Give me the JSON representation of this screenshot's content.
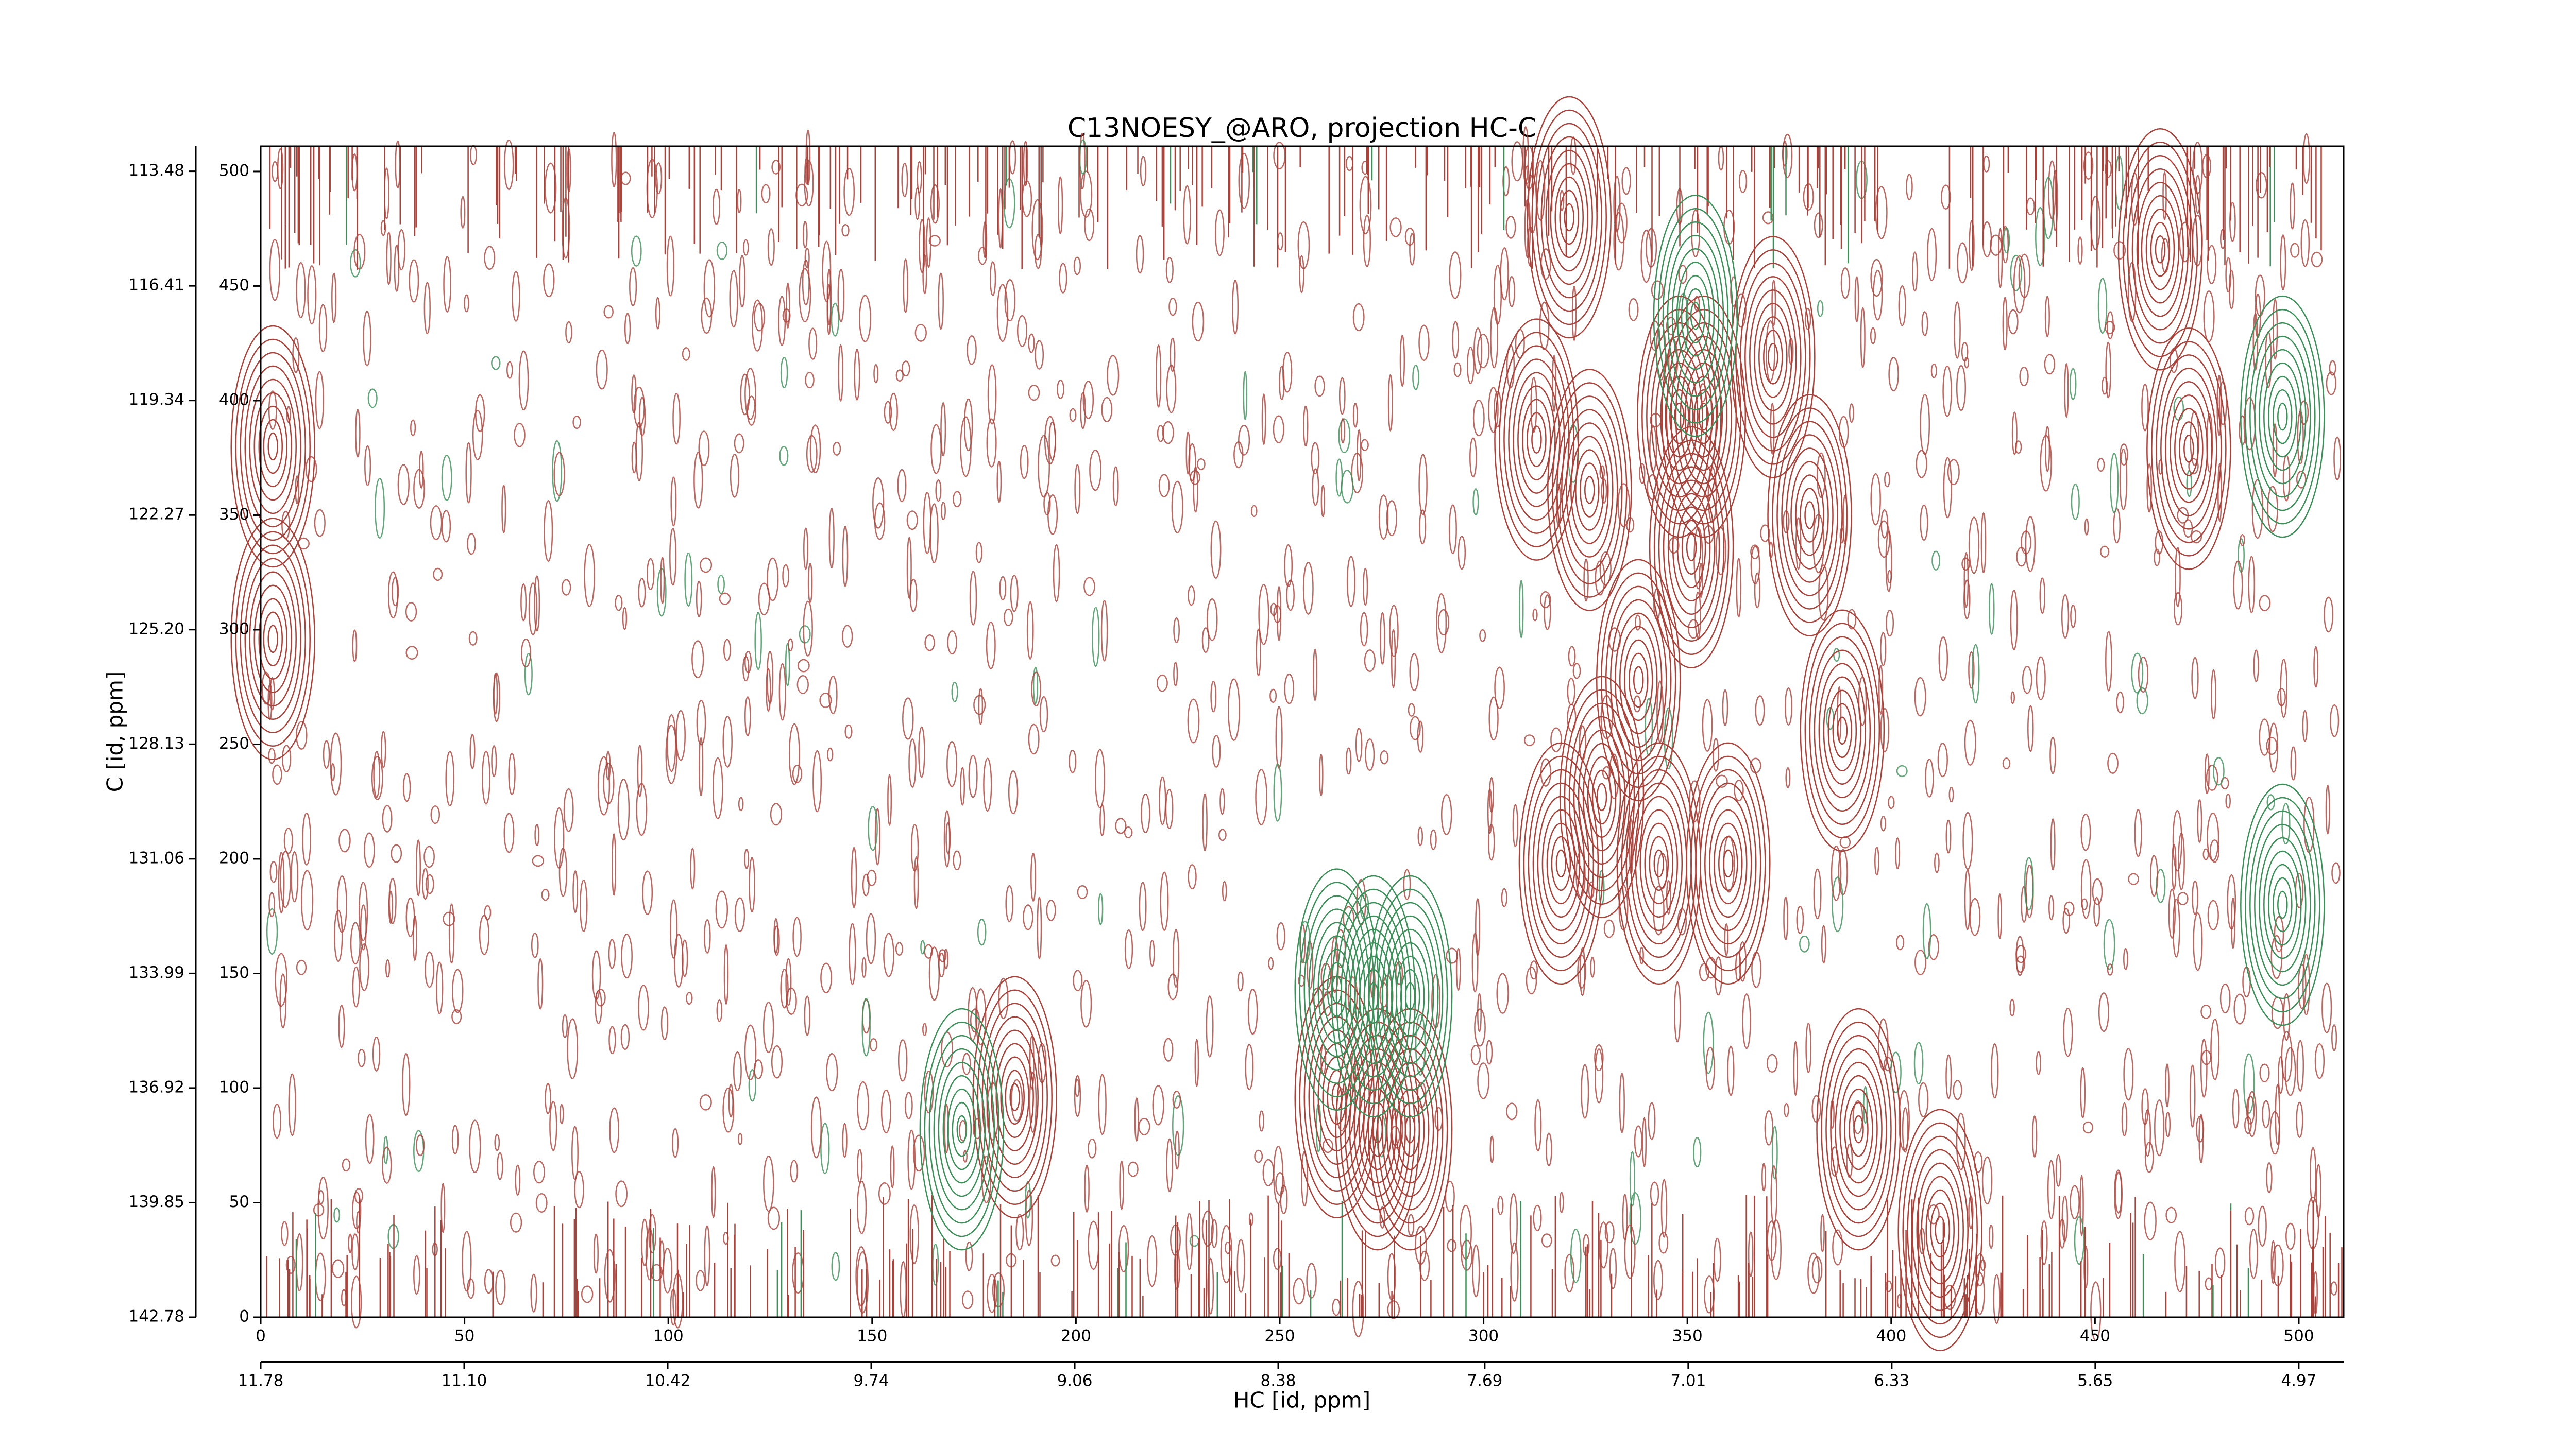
{
  "chart_data": {
    "type": "contour",
    "title": "C13NOESY_@ARO, projection HC-C",
    "xlabel": "HC [id, ppm]",
    "ylabel": "C [id, ppm]",
    "xlim": [
      0,
      511
    ],
    "ylim": [
      0,
      511
    ],
    "xticks": [
      0,
      50,
      100,
      150,
      200,
      250,
      300,
      350,
      400,
      450,
      500
    ],
    "yticks": [
      0,
      50,
      100,
      150,
      200,
      250,
      300,
      350,
      400,
      450,
      500
    ],
    "x2lim": [
      11.78,
      4.82
    ],
    "x2ticks": [
      11.78,
      {
        "value": 11.1,
        "label": "11.10"
      },
      10.42,
      9.74,
      9.06,
      8.38,
      7.69,
      7.01,
      6.33,
      5.65,
      4.97
    ],
    "y2lim": [
      142.78,
      112.84
    ],
    "y2ticks": [
      142.78,
      139.85,
      136.92,
      133.99,
      131.06,
      {
        "value": 128.13,
        "label": "128.13"
      },
      {
        "value": 125.2,
        "label": "125.20"
      },
      122.27,
      119.34,
      116.41,
      113.48
    ],
    "series": [
      {
        "color": "#a8433c",
        "x": [
          264,
          274,
          282,
          348,
          354,
          371,
          338,
          329,
          319,
          343,
          360,
          351,
          313,
          326,
          388,
          380,
          321,
          3,
          3,
          473,
          466,
          412,
          392,
          185
        ],
        "y": [
          96,
          82,
          82,
          393,
          393,
          419,
          278,
          227,
          198,
          198,
          198,
          336,
          383,
          361,
          256,
          350,
          480,
          296,
          380,
          379,
          466,
          38,
          82,
          96
        ]
      },
      {
        "color": "#3d8f5a",
        "x": [
          264,
          273,
          282,
          352,
          496,
          496,
          172
        ],
        "y": [
          143,
          140,
          140,
          437,
          180,
          393,
          82
        ]
      }
    ]
  }
}
